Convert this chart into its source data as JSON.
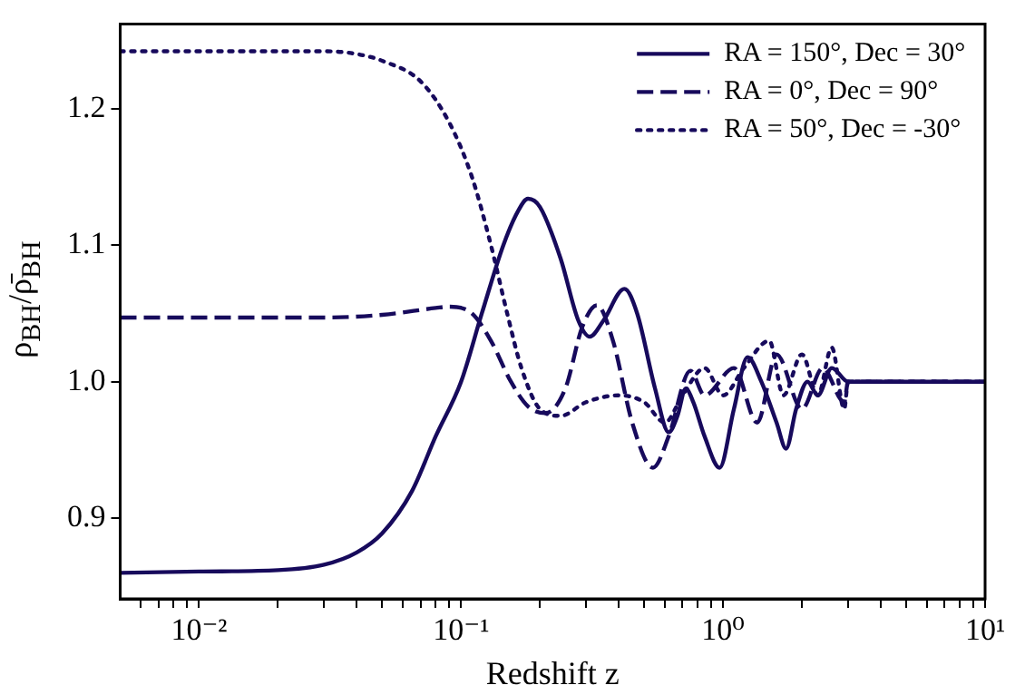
{
  "chart_data": {
    "type": "line",
    "xlabel": "Redshift z",
    "ylabel": "ρ$_{BH}$/ρ̄$_{BH}$",
    "log": "x",
    "grid": false,
    "legend": "top right",
    "marker": "none",
    "xlim": [
      0.005,
      10
    ],
    "ylim": [
      0.841,
      1.262
    ],
    "xticks": [
      {
        "value": 0.006,
        "label": null
      },
      {
        "value": 0.007,
        "label": null
      },
      {
        "value": 0.008,
        "label": null
      },
      {
        "value": 0.009,
        "label": null
      },
      {
        "value": 0.01,
        "label": "10⁻²"
      },
      {
        "value": 0.02,
        "label": null
      },
      {
        "value": 0.03,
        "label": null
      },
      {
        "value": 0.04,
        "label": null
      },
      {
        "value": 0.05,
        "label": null
      },
      {
        "value": 0.06,
        "label": null
      },
      {
        "value": 0.07,
        "label": null
      },
      {
        "value": 0.08,
        "label": null
      },
      {
        "value": 0.09,
        "label": null
      },
      {
        "value": 0.1,
        "label": "10⁻¹"
      },
      {
        "value": 0.2,
        "label": null
      },
      {
        "value": 0.3,
        "label": null
      },
      {
        "value": 0.4,
        "label": null
      },
      {
        "value": 0.5,
        "label": null
      },
      {
        "value": 0.6,
        "label": null
      },
      {
        "value": 0.7,
        "label": null
      },
      {
        "value": 0.8,
        "label": null
      },
      {
        "value": 0.9,
        "label": null
      },
      {
        "value": 1,
        "label": "10⁰"
      },
      {
        "value": 2,
        "label": null
      },
      {
        "value": 3,
        "label": null
      },
      {
        "value": 4,
        "label": null
      },
      {
        "value": 5,
        "label": null
      },
      {
        "value": 6,
        "label": null
      },
      {
        "value": 7,
        "label": null
      },
      {
        "value": 8,
        "label": null
      },
      {
        "value": 9,
        "label": null
      },
      {
        "value": 10,
        "label": "10¹"
      }
    ],
    "yticks": [
      0.9,
      {
        "value": 1.0,
        "label": "1.0"
      },
      1.1,
      1.2
    ],
    "series": [
      {
        "name": "RA = 150°, Dec = 30°",
        "color": "#170a5c",
        "line_style": "solid",
        "x": [
          0.005,
          0.01,
          0.02,
          0.03,
          0.04,
          0.05,
          0.065,
          0.08,
          0.1,
          0.12,
          0.145,
          0.165,
          0.18,
          0.2,
          0.24,
          0.28,
          0.31,
          0.35,
          0.42,
          0.47,
          0.55,
          0.62,
          0.67,
          0.72,
          0.77,
          0.85,
          0.97,
          1.1,
          1.24,
          1.4,
          1.6,
          1.74,
          1.9,
          2.1,
          2.3,
          2.6,
          3.0,
          5,
          10
        ],
        "values": [
          0.86,
          0.861,
          0.862,
          0.866,
          0.875,
          0.889,
          0.92,
          0.96,
          1.0,
          1.05,
          1.1,
          1.125,
          1.134,
          1.128,
          1.09,
          1.045,
          1.033,
          1.045,
          1.068,
          1.05,
          0.995,
          0.963,
          0.975,
          0.995,
          0.985,
          0.96,
          0.937,
          0.98,
          1.018,
          1.0,
          0.97,
          0.951,
          0.98,
          1.0,
          0.99,
          1.01,
          1.0,
          1.0,
          1.0
        ]
      },
      {
        "name": "RA = 0°, Dec = 90°",
        "color": "#170a5c",
        "line_style": "dashed",
        "x": [
          0.005,
          0.01,
          0.03,
          0.05,
          0.08,
          0.09,
          0.11,
          0.13,
          0.155,
          0.18,
          0.21,
          0.25,
          0.29,
          0.33,
          0.38,
          0.45,
          0.54,
          0.62,
          0.75,
          0.85,
          1.1,
          1.35,
          1.6,
          2.0,
          2.4,
          2.9,
          3.0,
          10
        ],
        "values": [
          1.047,
          1.047,
          1.047,
          1.049,
          1.054,
          1.055,
          1.05,
          1.03,
          1.0,
          0.982,
          0.977,
          0.995,
          1.04,
          1.056,
          1.03,
          0.97,
          0.937,
          0.96,
          1.008,
          0.99,
          1.01,
          0.97,
          1.02,
          0.98,
          1.01,
          0.985,
          1.0,
          1.0
        ]
      },
      {
        "name": "RA = 50°, Dec = -30°",
        "color": "#170a5c",
        "line_style": "dotted",
        "x": [
          0.005,
          0.01,
          0.03,
          0.04,
          0.05,
          0.07,
          0.09,
          0.11,
          0.13,
          0.15,
          0.17,
          0.2,
          0.24,
          0.3,
          0.4,
          0.5,
          0.6,
          0.7,
          0.85,
          1.0,
          1.2,
          1.5,
          1.7,
          2.0,
          2.3,
          2.6,
          2.9,
          3.0,
          10
        ],
        "values": [
          1.242,
          1.242,
          1.242,
          1.24,
          1.235,
          1.22,
          1.19,
          1.15,
          1.1,
          1.05,
          1.01,
          0.98,
          0.975,
          0.985,
          0.99,
          0.985,
          0.97,
          0.99,
          1.01,
          0.99,
          1.01,
          1.03,
          0.99,
          1.02,
          0.99,
          1.025,
          0.98,
          1.0,
          1.0
        ]
      }
    ]
  }
}
